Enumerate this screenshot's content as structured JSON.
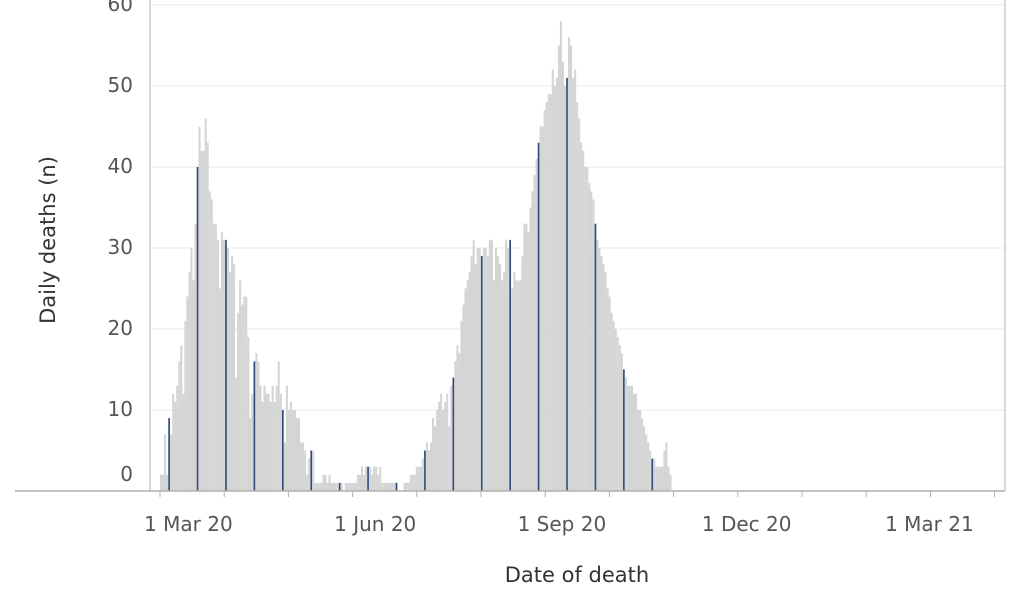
{
  "chart_data": {
    "type": "bar",
    "xlabel": "Date of death",
    "ylabel": "Daily deaths (n)",
    "x_ticks": [
      "1 Mar 20",
      "1 Jun 20",
      "1 Sep 20",
      "1 Dec 20",
      "1 Mar 21"
    ],
    "y_ticks": [
      "0",
      "10",
      "20",
      "30",
      "40",
      "50",
      "60"
    ],
    "ylim": [
      0,
      61
    ],
    "grid": "horizontal",
    "legend": "none",
    "x_start_date": "2020-02-16",
    "values": [
      2,
      2,
      7,
      2,
      9,
      7,
      12,
      11,
      13,
      16,
      18,
      12,
      21,
      24,
      27,
      30,
      26,
      33,
      40,
      45,
      42,
      42,
      46,
      43,
      37,
      36,
      33,
      33,
      31,
      25,
      32,
      31,
      31,
      30,
      27,
      29,
      28,
      14,
      22,
      26,
      23,
      24,
      24,
      19,
      9,
      12,
      16,
      17,
      16,
      13,
      11,
      13,
      12,
      12,
      11,
      13,
      11,
      13,
      16,
      12,
      10,
      6,
      13,
      10,
      11,
      10,
      10,
      9,
      9,
      6,
      6,
      5,
      2,
      4,
      5,
      5,
      1,
      1,
      1,
      1,
      2,
      2,
      1,
      2,
      1,
      1,
      1,
      1,
      1,
      1,
      0,
      1,
      1,
      1,
      1,
      1,
      1,
      2,
      2,
      3,
      2,
      3,
      3,
      3,
      2,
      3,
      3,
      2,
      3,
      1,
      1,
      1,
      1,
      1,
      1,
      1,
      1,
      0,
      0,
      0,
      1,
      1,
      1,
      2,
      2,
      2,
      3,
      3,
      3,
      4,
      5,
      6,
      5,
      6,
      9,
      8,
      10,
      11,
      12,
      10,
      11,
      12,
      8,
      13,
      14,
      16,
      18,
      17,
      21,
      23,
      25,
      26,
      27,
      29,
      31,
      28,
      30,
      30,
      29,
      30,
      30,
      29,
      31,
      31,
      26,
      30,
      29,
      28,
      26,
      27,
      31,
      30,
      31,
      25,
      27,
      26,
      26,
      26,
      29,
      33,
      33,
      32,
      35,
      37,
      39,
      41,
      43,
      45,
      45,
      47,
      48,
      49,
      49,
      52,
      50,
      51,
      55,
      58,
      53,
      50,
      51,
      56,
      55,
      51,
      52,
      48,
      46,
      43,
      42,
      40,
      40,
      38,
      37,
      36,
      33,
      31,
      30,
      29,
      28,
      27,
      25,
      24,
      22,
      21,
      20,
      19,
      18,
      17,
      15,
      14,
      13,
      13,
      13,
      12,
      12,
      10,
      10,
      9,
      8,
      7,
      6,
      5,
      4,
      4,
      3,
      3,
      3,
      3,
      5,
      6,
      3,
      2
    ],
    "highlight_step": 14
  },
  "colors": {
    "bar": "#d4d4d4",
    "highlight": "#2f4a7c",
    "grid": "#e8e8e8",
    "axis": "#b0b0b0",
    "text": "#555555"
  }
}
